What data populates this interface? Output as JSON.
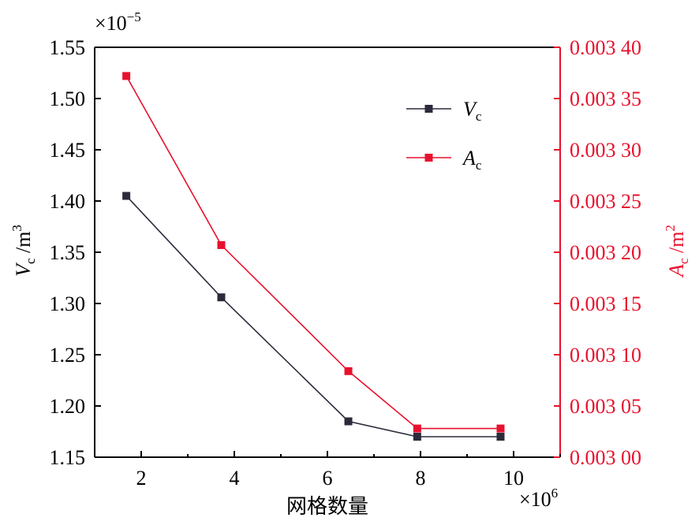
{
  "chart_data": {
    "type": "line",
    "x": [
      1.68,
      3.72,
      6.45,
      7.93,
      9.72
    ],
    "x_multiplier": "×10",
    "x_multiplier_exp": "6",
    "xlabel": "网格数量",
    "xlim": [
      1,
      11
    ],
    "xticks": [
      2,
      4,
      6,
      8,
      10
    ],
    "xtick_labels": [
      "2",
      "4",
      "6",
      "8",
      "10"
    ],
    "left_axis": {
      "label_symbol": "V",
      "label_sub": "c",
      "label_unit": " /m",
      "label_unit_sup": "3",
      "multiplier": "×10",
      "multiplier_exp": "−5",
      "ylim": [
        1.15,
        1.55
      ],
      "ticks": [
        1.15,
        1.2,
        1.25,
        1.3,
        1.35,
        1.4,
        1.45,
        1.5,
        1.55
      ],
      "tick_labels": [
        "1.15",
        "1.20",
        "1.25",
        "1.30",
        "1.35",
        "1.40",
        "1.45",
        "1.50",
        "1.55"
      ],
      "color": "#000000"
    },
    "right_axis": {
      "label_symbol": "A",
      "label_sub": "c",
      "label_unit": " /m",
      "label_unit_sup": "2",
      "ylim": [
        0.003,
        0.0034
      ],
      "ticks": [
        0.003,
        0.00305,
        0.0031,
        0.00315,
        0.0032,
        0.00325,
        0.0033,
        0.00335,
        0.0034
      ],
      "tick_labels": [
        "0.003 00",
        "0.003 05",
        "0.003 10",
        "0.003 15",
        "0.003 20",
        "0.003 25",
        "0.003 30",
        "0.003 35",
        "0.003 40"
      ],
      "color": "#e8112d"
    },
    "series": [
      {
        "name_symbol": "V",
        "name_sub": "c",
        "axis": "left",
        "color": "#2b2b3b",
        "values": [
          1.405,
          1.306,
          1.185,
          1.17,
          1.17
        ]
      },
      {
        "name_symbol": "A",
        "name_sub": "c",
        "axis": "right",
        "color": "#e8112d",
        "values": [
          0.003372,
          0.003207,
          0.003084,
          0.003028,
          0.003028
        ]
      }
    ],
    "legend_position": "top-right",
    "grid": false
  }
}
